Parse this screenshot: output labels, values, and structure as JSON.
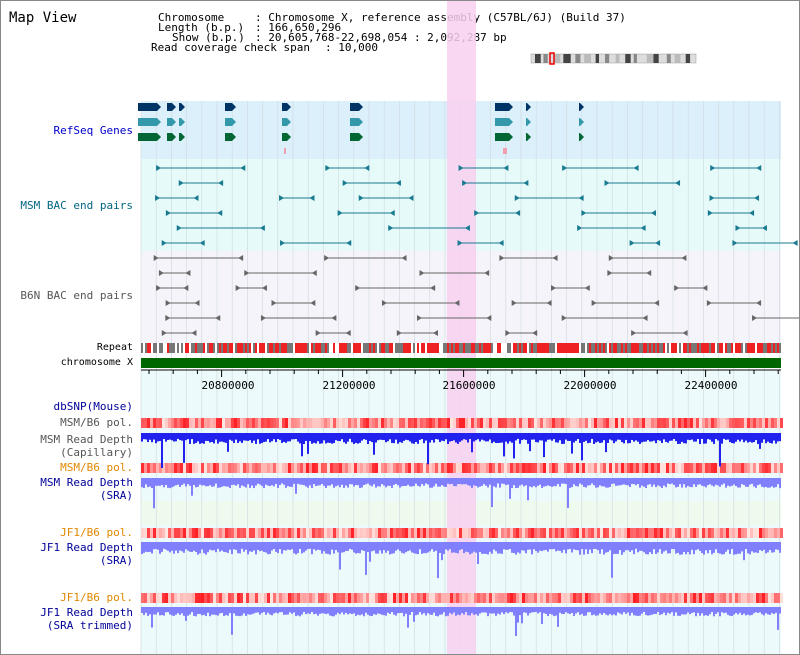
{
  "title": "Map View",
  "info": {
    "chromosome_key": "Chromosome",
    "chromosome_val": ": Chromosome X, reference assembly (C57BL/6J) (Build 37)",
    "length_key": "Length (b.p.)",
    "length_val": ": 166,650,296",
    "show_key": "Show (b.p.)",
    "show_val": ": 20,605,768-22,698,054 : 2,092,287 bp",
    "span_key": "Read coverage check span",
    "span_val": ": 10,000"
  },
  "tracks": {
    "refseq": "RefSeq Genes",
    "msm_bac": "MSM BAC end pairs",
    "b6n_bac": "B6N BAC end pairs",
    "repeat": "Repeat",
    "chromosome": "chromosome X",
    "dbsnp": "dbSNP(Mouse)",
    "msm_pol": "MSM/B6 pol.",
    "msm_depth_cap_1": "MSM Read Depth",
    "msm_depth_cap_2": "(Capillary)",
    "msm_pol_2": "MSM/B6 pol.",
    "msm_depth_sra_1": "MSM Read Depth",
    "msm_depth_sra_2": "(SRA)",
    "jf1_pol": "JF1/B6 pol.",
    "jf1_depth_1": "JF1 Read Depth",
    "jf1_depth_2": "(SRA)",
    "jf1_pol_2": "JF1/B6 pol.",
    "jf1_trim_1": "JF1 Read Depth",
    "jf1_trim_2": "(SRA trimmed)"
  },
  "axis_ticks": [
    "20800000",
    "21200000",
    "21600000",
    "22000000",
    "22400000"
  ],
  "colors": {
    "refseq_bg": "#dcf0fb",
    "bac_bg": "#e6fafa",
    "b6n_bg": "#f4f4fa",
    "highlight": "#f8d0f0",
    "chromosome": "#006600",
    "repeat_red": "#ee2222",
    "depth_capillary": "#2222ee",
    "depth_sra": "#8080ff"
  }
}
